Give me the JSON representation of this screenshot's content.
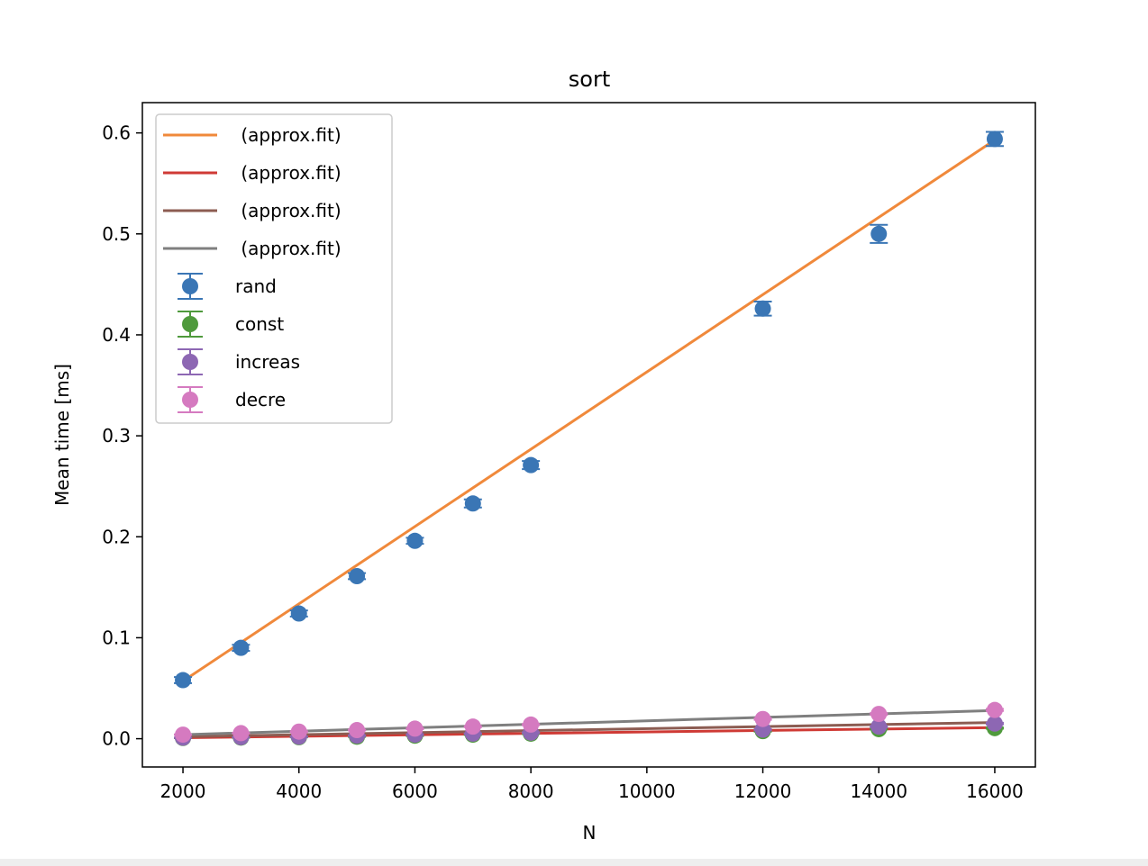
{
  "chart_data": {
    "type": "scatter",
    "title": "sort",
    "xlabel": "N",
    "ylabel": "Mean time [ms]",
    "xlim": [
      1300,
      16700
    ],
    "ylim": [
      -0.028,
      0.63
    ],
    "xticks": [
      2000,
      4000,
      6000,
      8000,
      10000,
      12000,
      14000,
      16000
    ],
    "yticks": [
      0.0,
      0.1,
      0.2,
      0.3,
      0.4,
      0.5,
      0.6
    ],
    "ytick_labels": [
      "0.0",
      "0.1",
      "0.2",
      "0.3",
      "0.4",
      "0.5",
      "0.6"
    ],
    "grid": false,
    "legend_position": "upper-left",
    "x": [
      2000,
      3000,
      4000,
      5000,
      6000,
      7000,
      8000,
      12000,
      14000,
      16000
    ],
    "fits": [
      {
        "label": " (approx.fit)",
        "color": "#f0893b",
        "x": [
          2000,
          16000
        ],
        "y": [
          0.057,
          0.593
        ]
      },
      {
        "label": " (approx.fit)",
        "color": "#cf3a35",
        "x": [
          2000,
          16000
        ],
        "y": [
          0.001,
          0.011
        ]
      },
      {
        "label": " (approx.fit)",
        "color": "#8c5c52",
        "x": [
          2000,
          16000
        ],
        "y": [
          0.002,
          0.016
        ]
      },
      {
        "label": " (approx.fit)",
        "color": "#7f7f7f",
        "x": [
          2000,
          16000
        ],
        "y": [
          0.004,
          0.028
        ]
      }
    ],
    "series": [
      {
        "name": "rand",
        "color": "#3a76b5",
        "values": [
          0.058,
          0.09,
          0.124,
          0.161,
          0.196,
          0.233,
          0.271,
          0.426,
          0.5,
          0.594
        ],
        "errors": [
          0.003,
          0.003,
          0.003,
          0.003,
          0.003,
          0.004,
          0.004,
          0.007,
          0.009,
          0.007
        ]
      },
      {
        "name": "const",
        "color": "#4f9a3c",
        "values": [
          0.0007,
          0.0011,
          0.0015,
          0.002,
          0.003,
          0.004,
          0.005,
          0.0075,
          0.0095,
          0.0105
        ],
        "errors": [
          0.0002,
          0.0002,
          0.0002,
          0.0002,
          0.0003,
          0.0003,
          0.0003,
          0.0005,
          0.0005,
          0.0006
        ]
      },
      {
        "name": "increas",
        "color": "#8d67b3",
        "values": [
          0.001,
          0.0015,
          0.002,
          0.003,
          0.004,
          0.005,
          0.006,
          0.009,
          0.012,
          0.015
        ],
        "errors": [
          0.0002,
          0.0002,
          0.0002,
          0.0003,
          0.0003,
          0.0003,
          0.0004,
          0.0006,
          0.0007,
          0.0008
        ]
      },
      {
        "name": "decre",
        "color": "#d57ac0",
        "values": [
          0.004,
          0.0055,
          0.007,
          0.0085,
          0.01,
          0.012,
          0.014,
          0.0195,
          0.0245,
          0.0285
        ],
        "errors": [
          0.0003,
          0.0003,
          0.0004,
          0.0004,
          0.0005,
          0.0005,
          0.0006,
          0.0008,
          0.0009,
          0.001
        ]
      }
    ]
  }
}
